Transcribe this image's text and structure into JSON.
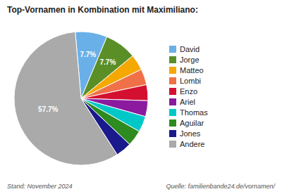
{
  "chart_data": {
    "type": "pie",
    "title": "Top-Vornamen in Kombination mit Maximiliano:",
    "categories": [
      "David",
      "Jorge",
      "Matteo",
      "Lombi",
      "Enzo",
      "Ariel",
      "Thomas",
      "Aguilar",
      "Jones",
      "Andere"
    ],
    "values": [
      7.7,
      7.7,
      3.85,
      3.85,
      3.85,
      3.85,
      3.85,
      3.85,
      3.85,
      57.7
    ],
    "colors": [
      "#6ab0e8",
      "#5a8f28",
      "#f5a800",
      "#f07048",
      "#d41030",
      "#8b1a9e",
      "#00c8c8",
      "#2e8b20",
      "#1a1a8c",
      "#aaaaaa"
    ],
    "data_labels": true,
    "value_labels": [
      "7.7%",
      "7.7%",
      null,
      null,
      null,
      null,
      null,
      null,
      null,
      "57.7%"
    ],
    "legend": "right",
    "annotations": [
      "Stand: November 2024",
      "Quelle: familienbande24.de/vornamen/"
    ]
  }
}
